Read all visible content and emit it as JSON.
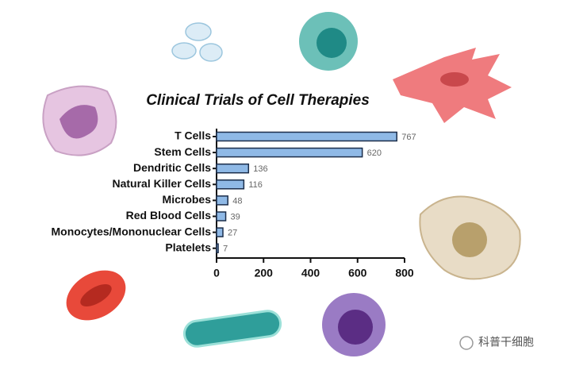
{
  "chart_data": {
    "type": "bar",
    "orientation": "horizontal",
    "title": "Clinical Trials of Cell Therapies",
    "categories": [
      "T Cells",
      "Stem Cells",
      "Dendritic Cells",
      "Natural Killer Cells",
      "Microbes",
      "Red Blood Cells",
      "Monocytes/Mononuclear Cells",
      "Platelets"
    ],
    "values": [
      767,
      620,
      136,
      116,
      48,
      39,
      27,
      7
    ],
    "color": "#8fb9e6",
    "xlim": [
      0,
      800
    ],
    "xticks": [
      0,
      200,
      400,
      600,
      800
    ]
  },
  "watermark": "科普干细胞"
}
